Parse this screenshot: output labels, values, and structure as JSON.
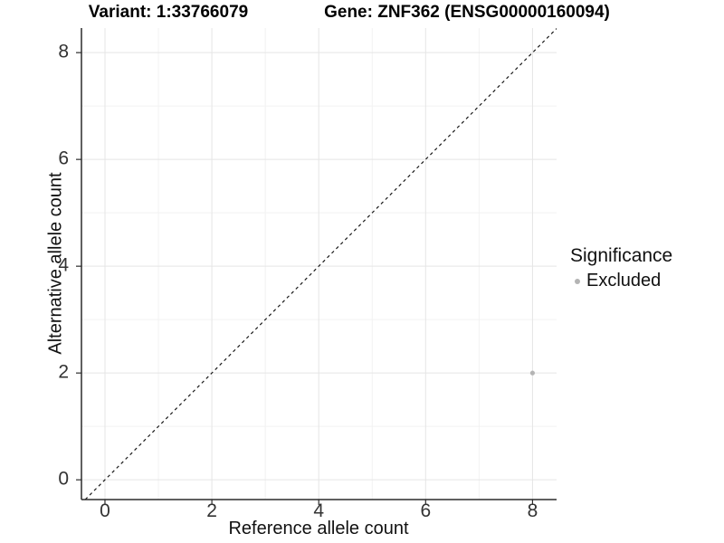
{
  "chart_data": {
    "type": "scatter",
    "titles": {
      "left": "Variant: 1:33766079",
      "right": "Gene: ZNF362 (ENSG00000160094)"
    },
    "xlabel": "Reference allele count",
    "ylabel": "Alternative allele count",
    "xlim": [
      -0.44,
      8.45
    ],
    "ylim": [
      -0.37,
      8.46
    ],
    "x_major_ticks": [
      0,
      2,
      4,
      6,
      8
    ],
    "y_major_ticks": [
      0,
      2,
      4,
      6,
      8
    ],
    "x_minor_gridlines": [
      1,
      3,
      5,
      7
    ],
    "y_minor_gridlines": [
      1,
      3,
      5,
      7
    ],
    "grid": "major and minor, light gray on white",
    "identity_line": {
      "style": "dashed",
      "from": -0.37,
      "to": 8.45
    },
    "points": [
      {
        "x": 8,
        "y": 2,
        "series": "Excluded"
      }
    ],
    "legend": {
      "title": "Significance",
      "position": "right",
      "items": [
        {
          "label": "Excluded",
          "color": "#b4b4b4"
        }
      ]
    },
    "colors": {
      "point": "#b4b4b4",
      "grid_major": "#e5e5e5",
      "grid_minor": "#f2f2f2",
      "axis_line": "#2b2b2b",
      "tick_mark": "#2b2b2b",
      "identity_line": "#1a1a1a"
    }
  }
}
